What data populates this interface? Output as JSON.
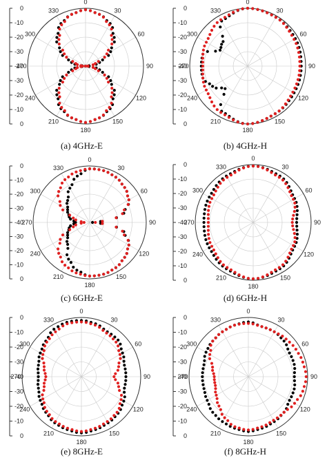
{
  "colors": {
    "series1": "#000000",
    "series2": "#e02020",
    "axis": "#333333",
    "grid": "#c8c8c8"
  },
  "chart_data": [
    {
      "type": "scatter",
      "polar": true,
      "caption": "(a)  4GHz-E",
      "r_ticks": [
        "0",
        "-10",
        "-20",
        "-30",
        "-40"
      ],
      "r_range": [
        -40,
        0
      ],
      "angle_direction": "clockwise",
      "zero_angle": "top",
      "angle_ticks": [
        "0",
        "30",
        "60",
        "90",
        "120",
        "150",
        "180",
        "210",
        "240",
        "270",
        "300",
        "330"
      ],
      "series": [
        {
          "color": "#000000",
          "angles": [
            0,
            15,
            30,
            45,
            60,
            75,
            90,
            105,
            120,
            135,
            150,
            165,
            180,
            195,
            210,
            225,
            240,
            255,
            270,
            285,
            300,
            315,
            330,
            345
          ],
          "values": [
            -1,
            -3,
            -6,
            -12,
            -20,
            -30,
            -40,
            -30,
            -20,
            -12,
            -6,
            -3,
            -1,
            -3,
            -6,
            -12,
            -20,
            -30,
            -40,
            -30,
            -20,
            -12,
            -6,
            -3
          ]
        },
        {
          "color": "#e02020",
          "angles": [
            0,
            15,
            30,
            45,
            60,
            75,
            90,
            105,
            120,
            135,
            150,
            165,
            180,
            195,
            210,
            225,
            240,
            255,
            270,
            285,
            300,
            315,
            330,
            345
          ],
          "values": [
            -1,
            -3,
            -7,
            -14,
            -23,
            -33,
            -40,
            -33,
            -23,
            -14,
            -7,
            -3,
            -1,
            -3,
            -7,
            -14,
            -23,
            -33,
            -38,
            -33,
            -23,
            -14,
            -7,
            -3
          ]
        }
      ]
    },
    {
      "type": "scatter",
      "polar": true,
      "caption": "(b)  4GHz-H",
      "r_ticks": [
        "0",
        "-10",
        "-20",
        "-30",
        "-40"
      ],
      "r_range": [
        -40,
        0
      ],
      "angle_direction": "clockwise",
      "zero_angle": "top",
      "angle_ticks": [
        "0",
        "30",
        "60",
        "90",
        "120",
        "150",
        "180",
        "210",
        "240",
        "270",
        "300",
        "330"
      ],
      "series": [
        {
          "color": "#000000",
          "angles": [
            0,
            30,
            60,
            90,
            120,
            150,
            180,
            210,
            225,
            240,
            255,
            270,
            285,
            300,
            315,
            330
          ],
          "values": [
            0,
            -1,
            -2,
            -3,
            -3,
            -2,
            0,
            -4,
            -18,
            -12,
            -8,
            -8,
            -8,
            -18,
            -16,
            -4
          ]
        },
        {
          "color": "#e02020",
          "angles": [
            0,
            30,
            60,
            90,
            120,
            150,
            180,
            210,
            240,
            270,
            300,
            330
          ],
          "values": [
            0,
            -1,
            -3,
            -4,
            -4,
            -2,
            0,
            -3,
            -7,
            -9,
            -7,
            -3
          ]
        }
      ]
    },
    {
      "type": "scatter",
      "polar": true,
      "caption": "(c)  6GHz-E",
      "r_ticks": [
        "0",
        "-10",
        "-20",
        "-30",
        "-40"
      ],
      "r_range": [
        -40,
        0
      ],
      "angle_direction": "clockwise",
      "zero_angle": "top",
      "angle_ticks": [
        "0",
        "30",
        "60",
        "90",
        "120",
        "150",
        "180",
        "210",
        "240",
        "270",
        "300",
        "330"
      ],
      "series": [
        {
          "color": "#000000",
          "angles": [
            0,
            15,
            30,
            45,
            60,
            75,
            90,
            105,
            120,
            135,
            150,
            165,
            180,
            195,
            210,
            225,
            240,
            255,
            270,
            285,
            300,
            315,
            330,
            345
          ],
          "values": [
            -2,
            -2,
            -3,
            -5,
            -8,
            -15,
            -38,
            -15,
            -8,
            -5,
            -3,
            -2,
            -2,
            -5,
            -10,
            -18,
            -22,
            -25,
            -30,
            -25,
            -22,
            -18,
            -12,
            -6
          ]
        },
        {
          "color": "#e02020",
          "angles": [
            0,
            15,
            30,
            45,
            60,
            75,
            90,
            105,
            120,
            135,
            150,
            165,
            180,
            195,
            210,
            225,
            240,
            255,
            270,
            285,
            300,
            315,
            330,
            345
          ],
          "values": [
            -2,
            -2,
            -3,
            -5,
            -8,
            -16,
            -36,
            -16,
            -8,
            -5,
            -3,
            -2,
            -2,
            -3,
            -5,
            -9,
            -16,
            -28,
            -36,
            -28,
            -16,
            -9,
            -5,
            -3
          ]
        }
      ]
    },
    {
      "type": "scatter",
      "polar": true,
      "caption": "(d)  6GHz-H",
      "r_ticks": [
        "0",
        "-10",
        "-20",
        "-30",
        "-40"
      ],
      "r_range": [
        -40,
        0
      ],
      "angle_direction": "clockwise",
      "zero_angle": "top",
      "angle_ticks": [
        "0",
        "30",
        "60",
        "90",
        "120",
        "150",
        "180",
        "210",
        "240",
        "270",
        "300",
        "330"
      ],
      "series": [
        {
          "color": "#000000",
          "angles": [
            0,
            30,
            60,
            90,
            120,
            150,
            180,
            210,
            240,
            270,
            300,
            330
          ],
          "values": [
            -1,
            -3,
            -7,
            -10,
            -7,
            -3,
            -1,
            -3,
            -5,
            -6,
            -5,
            -3
          ]
        },
        {
          "color": "#e02020",
          "angles": [
            0,
            30,
            60,
            90,
            120,
            150,
            180,
            210,
            240,
            270,
            300,
            330
          ],
          "values": [
            -1,
            -4,
            -8,
            -13,
            -8,
            -4,
            -1,
            -4,
            -7,
            -9,
            -7,
            -4
          ]
        }
      ]
    },
    {
      "type": "scatter",
      "polar": true,
      "caption": "(e)  8GHz-E",
      "r_ticks": [
        "0",
        "-10",
        "-20",
        "-30",
        "-40"
      ],
      "r_range": [
        -40,
        0
      ],
      "angle_direction": "clockwise",
      "zero_angle": "top",
      "angle_ticks": [
        "0",
        "30",
        "60",
        "90",
        "120",
        "150",
        "180",
        "210",
        "240",
        "270",
        "300",
        "330"
      ],
      "series": [
        {
          "color": "#000000",
          "angles": [
            0,
            15,
            30,
            45,
            60,
            75,
            90,
            105,
            120,
            135,
            150,
            165,
            180,
            195,
            210,
            225,
            240,
            255,
            270,
            285,
            300,
            315,
            330,
            345
          ],
          "values": [
            -2,
            -3,
            -5,
            -5,
            -8,
            -10,
            -10,
            -10,
            -7,
            -5,
            -4,
            -3,
            -2,
            -3,
            -4,
            -6,
            -8,
            -10,
            -11,
            -10,
            -8,
            -6,
            -3,
            -2
          ]
        },
        {
          "color": "#e02020",
          "angles": [
            0,
            15,
            30,
            45,
            60,
            75,
            90,
            105,
            120,
            135,
            150,
            165,
            180,
            195,
            210,
            225,
            240,
            255,
            270,
            285,
            300,
            315,
            330,
            345
          ],
          "values": [
            -3,
            -4,
            -6,
            -7,
            -10,
            -14,
            -18,
            -14,
            -9,
            -6,
            -5,
            -4,
            -3,
            -4,
            -5,
            -7,
            -10,
            -14,
            -16,
            -14,
            -10,
            -7,
            -5,
            -3
          ]
        }
      ]
    },
    {
      "type": "scatter",
      "polar": true,
      "caption": "(f)  8GHz-H",
      "r_ticks": [
        "0",
        "-10",
        "-20",
        "-30",
        "-40"
      ],
      "r_range": [
        -40,
        0
      ],
      "angle_direction": "clockwise",
      "zero_angle": "top",
      "angle_ticks": [
        "0",
        "30",
        "60",
        "90",
        "120",
        "150",
        "180",
        "210",
        "240",
        "270",
        "300",
        "330"
      ],
      "series": [
        {
          "color": "#000000",
          "angles": [
            0,
            15,
            30,
            45,
            60,
            75,
            90,
            105,
            120,
            135,
            150,
            165,
            180,
            195,
            210,
            225,
            240,
            255,
            270,
            285,
            300,
            315,
            330,
            345
          ],
          "values": [
            -3,
            -5,
            -5,
            -6,
            -8,
            -8,
            -9,
            -8,
            -8,
            -6,
            -5,
            -4,
            -3,
            -4,
            -5,
            -6,
            -8,
            -9,
            -9,
            -9,
            -7,
            -6,
            -5,
            -4
          ]
        },
        {
          "color": "#e02020",
          "angles": [
            0,
            15,
            30,
            45,
            60,
            75,
            90,
            105,
            120,
            135,
            150,
            165,
            180,
            195,
            210,
            225,
            240,
            255,
            270,
            285,
            300,
            315,
            330,
            345
          ],
          "values": [
            -4,
            -5,
            -5,
            -4,
            -3,
            -2,
            -1,
            -2,
            -4,
            -6,
            -6,
            -5,
            -4,
            -5,
            -8,
            -12,
            -15,
            -17,
            -17,
            -15,
            -10,
            -6,
            -5,
            -4
          ]
        }
      ]
    }
  ]
}
